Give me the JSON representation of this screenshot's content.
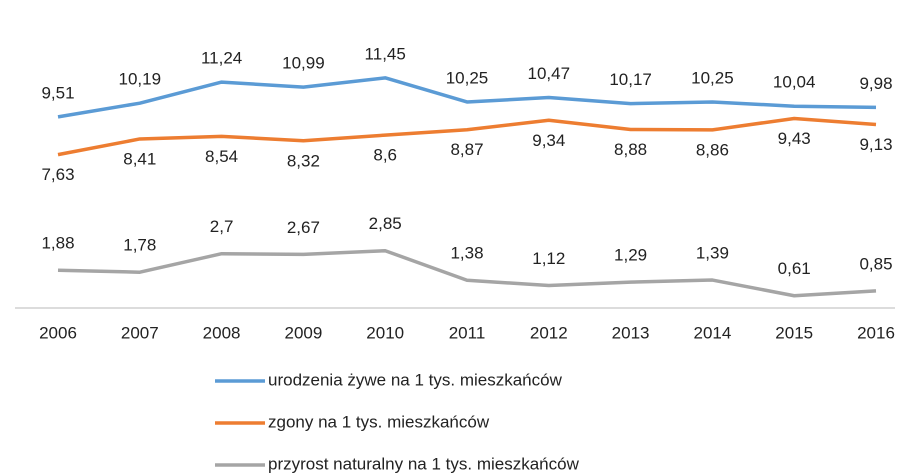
{
  "chart_data": {
    "type": "line",
    "categories": [
      "2006",
      "2007",
      "2008",
      "2009",
      "2010",
      "2011",
      "2012",
      "2013",
      "2014",
      "2015",
      "2016"
    ],
    "series": [
      {
        "name": "urodzenia żywe na 1 tys. mieszkańców",
        "color": "#5b9bd5",
        "values": [
          9.51,
          10.19,
          11.24,
          10.99,
          11.45,
          10.25,
          10.47,
          10.17,
          10.25,
          10.04,
          9.98
        ],
        "value_labels": [
          "9,51",
          "10,19",
          "11,24",
          "10,99",
          "11,45",
          "10,25",
          "10,47",
          "10,17",
          "10,25",
          "10,04",
          "9,98"
        ]
      },
      {
        "name": "zgony na 1 tys. mieszkańców",
        "color": "#ed7d31",
        "values": [
          7.63,
          8.41,
          8.54,
          8.32,
          8.6,
          8.87,
          9.34,
          8.88,
          8.86,
          9.43,
          9.13
        ],
        "value_labels": [
          "7,63",
          "8,41",
          "8,54",
          "8,32",
          "8,6",
          "8,87",
          "9,34",
          "8,88",
          "8,86",
          "9,43",
          "9,13"
        ]
      },
      {
        "name": "przyrost naturalny na 1 tys. mieszkańców",
        "color": "#a5a5a5",
        "values": [
          1.88,
          1.78,
          2.7,
          2.67,
          2.85,
          1.38,
          1.12,
          1.29,
          1.39,
          0.61,
          0.85
        ],
        "value_labels": [
          "1,88",
          "1,78",
          "2,7",
          "2,67",
          "2,85",
          "1,38",
          "1,12",
          "1,29",
          "1,39",
          "0,61",
          "0,85"
        ]
      }
    ]
  }
}
